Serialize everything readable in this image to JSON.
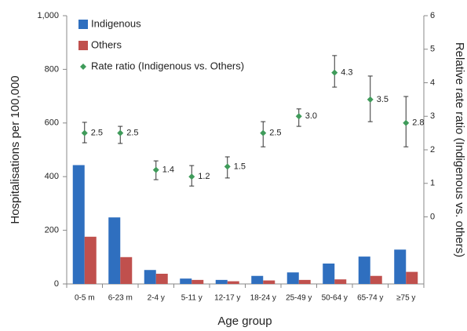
{
  "chart_data": {
    "type": "bar",
    "x_label": "Age group",
    "y_label": "Hospitalisations per 100,000",
    "y2_label": "Relative rate ratio (Indigenous vs. others)",
    "categories": [
      "0-5 m",
      "6-23 m",
      "2-4 y",
      "5-11 y",
      "12-17 y",
      "18-24 y",
      "25-49 y",
      "50-64 y",
      "65-74 y",
      "≥75 y"
    ],
    "series": [
      {
        "name": "Indigenous",
        "color": "#2f6fbf",
        "values": [
          443,
          248,
          52,
          20,
          15,
          30,
          43,
          76,
          102,
          128
        ]
      },
      {
        "name": "Others",
        "color": "#c0504d",
        "values": [
          176,
          100,
          38,
          15,
          10,
          13,
          15,
          17,
          30,
          45
        ]
      },
      {
        "name": "Rate ratio (Indigenous vs. Others)",
        "color": "#3f9b5a",
        "axis": "y2",
        "values": [
          2.5,
          2.5,
          1.4,
          1.2,
          1.5,
          2.5,
          3.0,
          4.3,
          3.5,
          2.8
        ],
        "value_labels": [
          "2.5",
          "2.5",
          "1.4",
          "1.2",
          "1.5",
          "2.5",
          "3.0",
          "4.3",
          "3.5",
          "2.8"
        ],
        "lower": [
          2.21,
          2.19,
          1.11,
          0.92,
          1.16,
          2.09,
          2.7,
          3.87,
          2.84,
          2.09
        ],
        "upper": [
          2.82,
          2.7,
          1.67,
          1.53,
          1.79,
          2.84,
          3.22,
          4.81,
          4.2,
          3.59
        ]
      }
    ],
    "ylim": [
      0,
      1000
    ],
    "yticks": [
      0,
      200,
      400,
      600,
      800,
      {
        "value": 1000,
        "label": "1,000"
      }
    ],
    "y2lim": [
      -2,
      6
    ],
    "y2ticks": [
      0,
      1,
      2,
      3,
      4,
      5,
      6
    ],
    "legend": "upper left"
  }
}
